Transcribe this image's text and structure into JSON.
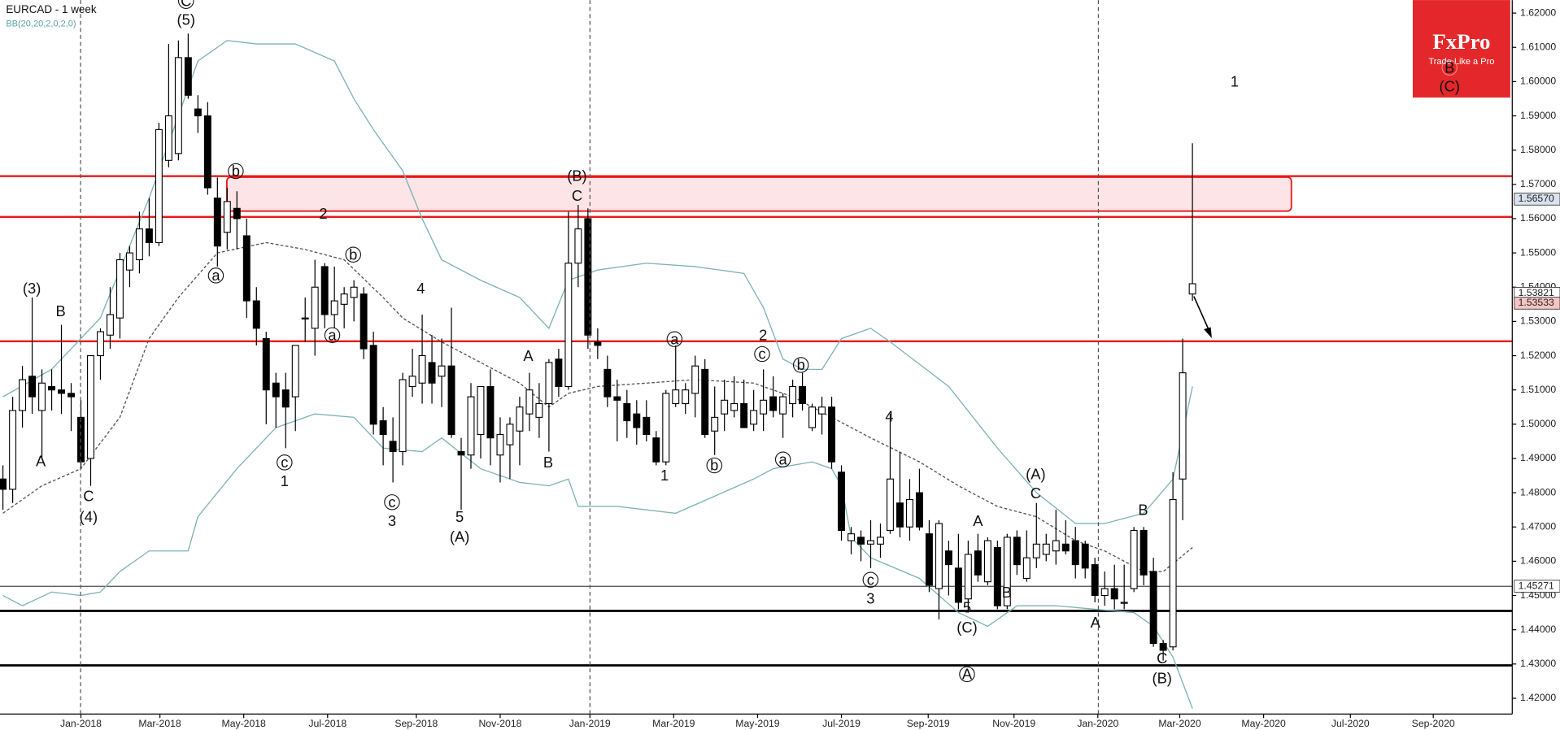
{
  "chart_data": {
    "type": "candlestick",
    "title": "EURCAD - 1 week",
    "indicator": "BB(20,20,2,0,2,0)",
    "logo": {
      "name": "FxPro",
      "slogan": "Trade Like a Pro"
    },
    "ylim": [
      1.4154,
      1.6238
    ],
    "xlim": [
      -0.3,
      154.8
    ],
    "yticks": [
      {
        "value": 1.62,
        "label": "1.62000"
      },
      {
        "value": 1.61,
        "label": "1.61000"
      },
      {
        "value": 1.6,
        "label": "1.60000"
      },
      {
        "value": 1.59,
        "label": "1.59000"
      },
      {
        "value": 1.58,
        "label": "1.58000"
      },
      {
        "value": 1.57,
        "label": "1.57000"
      },
      {
        "value": 1.56,
        "label": "1.56000"
      },
      {
        "value": 1.55,
        "label": "1.55000"
      },
      {
        "value": 1.54,
        "label": "1.54000"
      },
      {
        "value": 1.53,
        "label": "1.53000"
      },
      {
        "value": 1.52,
        "label": "1.52000"
      },
      {
        "value": 1.51,
        "label": "1.51000"
      },
      {
        "value": 1.5,
        "label": "1.50000"
      },
      {
        "value": 1.49,
        "label": "1.49000"
      },
      {
        "value": 1.48,
        "label": "1.48000"
      },
      {
        "value": 1.47,
        "label": "1.47000"
      },
      {
        "value": 1.46,
        "label": "1.46000"
      },
      {
        "value": 1.45,
        "label": "1.45000"
      },
      {
        "value": 1.44,
        "label": "1.44000"
      },
      {
        "value": 1.43,
        "label": "1.43000"
      },
      {
        "value": 1.42,
        "label": "1.42000"
      }
    ],
    "xticks": [
      {
        "value": 8.0,
        "label": "Jan-2018"
      },
      {
        "value": 16.1,
        "label": "Mar-2018"
      },
      {
        "value": 24.7,
        "label": "May-2018"
      },
      {
        "value": 33.3,
        "label": "Jul-2018"
      },
      {
        "value": 42.4,
        "label": "Sep-2018"
      },
      {
        "value": 51.0,
        "label": "Nov-2018"
      },
      {
        "value": 60.2,
        "label": "Jan-2019"
      },
      {
        "value": 68.8,
        "label": "Mar-2019"
      },
      {
        "value": 77.4,
        "label": "May-2019"
      },
      {
        "value": 86.0,
        "label": "Jul-2019"
      },
      {
        "value": 94.9,
        "label": "Sep-2019"
      },
      {
        "value": 103.7,
        "label": "Nov-2019"
      },
      {
        "value": 112.3,
        "label": "Jan-2020"
      },
      {
        "value": 120.7,
        "label": "Mar-2020"
      },
      {
        "value": 129.3,
        "label": "May-2020"
      },
      {
        "value": 138.2,
        "label": "Jul-2020"
      },
      {
        "value": 146.7,
        "label": "Sep-2020"
      }
    ],
    "ohlc": [
      [
        1.484,
        1.488,
        1.475,
        1.481
      ],
      [
        1.481,
        1.508,
        1.477,
        1.504
      ],
      [
        1.504,
        1.517,
        1.499,
        1.513
      ],
      [
        1.514,
        1.537,
        1.503,
        1.508
      ],
      [
        1.504,
        1.516,
        1.49,
        1.512
      ],
      [
        1.511,
        1.516,
        1.504,
        1.51
      ],
      [
        1.51,
        1.529,
        1.503,
        1.509
      ],
      [
        1.509,
        1.512,
        1.498,
        1.508
      ],
      [
        1.502,
        1.507,
        1.487,
        1.489
      ],
      [
        1.49,
        1.52,
        1.482,
        1.52
      ],
      [
        1.52,
        1.528,
        1.513,
        1.527
      ],
      [
        1.526,
        1.54,
        1.522,
        1.532
      ],
      [
        1.531,
        1.55,
        1.525,
        1.548
      ],
      [
        1.545,
        1.552,
        1.54,
        1.55
      ],
      [
        1.548,
        1.562,
        1.544,
        1.557
      ],
      [
        1.557,
        1.566,
        1.549,
        1.553
      ],
      [
        1.553,
        1.588,
        1.552,
        1.586
      ],
      [
        1.577,
        1.611,
        1.575,
        1.59
      ],
      [
        1.579,
        1.612,
        1.577,
        1.607
      ],
      [
        1.607,
        1.614,
        1.595,
        1.596
      ],
      [
        1.592,
        1.596,
        1.585,
        1.59
      ],
      [
        1.59,
        1.594,
        1.567,
        1.569
      ],
      [
        1.566,
        1.572,
        1.546,
        1.552
      ],
      [
        1.556,
        1.569,
        1.551,
        1.565
      ],
      [
        1.563,
        1.568,
        1.551,
        1.56
      ],
      [
        1.555,
        1.56,
        1.531,
        1.536
      ],
      [
        1.536,
        1.54,
        1.523,
        1.528
      ],
      [
        1.525,
        1.527,
        1.5,
        1.51
      ],
      [
        1.512,
        1.515,
        1.499,
        1.508
      ],
      [
        1.51,
        1.515,
        1.493,
        1.505
      ],
      [
        1.508,
        1.523,
        1.498,
        1.523
      ],
      [
        1.531,
        1.537,
        1.524,
        1.531
      ],
      [
        1.528,
        1.548,
        1.52,
        1.54
      ],
      [
        1.546,
        1.547,
        1.528,
        1.532
      ],
      [
        1.532,
        1.546,
        1.528,
        1.536
      ],
      [
        1.535,
        1.54,
        1.528,
        1.538
      ],
      [
        1.537,
        1.542,
        1.53,
        1.54
      ],
      [
        1.538,
        1.54,
        1.519,
        1.522
      ],
      [
        1.523,
        1.527,
        1.497,
        1.5
      ],
      [
        1.501,
        1.505,
        1.488,
        1.497
      ],
      [
        1.495,
        1.502,
        1.483,
        1.492
      ],
      [
        1.492,
        1.515,
        1.488,
        1.513
      ],
      [
        1.511,
        1.522,
        1.508,
        1.514
      ],
      [
        1.512,
        1.532,
        1.506,
        1.52
      ],
      [
        1.518,
        1.526,
        1.506,
        1.512
      ],
      [
        1.514,
        1.525,
        1.505,
        1.517
      ],
      [
        1.517,
        1.534,
        1.496,
        1.497
      ],
      [
        1.492,
        1.496,
        1.475,
        1.491
      ],
      [
        1.491,
        1.512,
        1.487,
        1.508
      ],
      [
        1.497,
        1.51,
        1.49,
        1.511
      ],
      [
        1.511,
        1.516,
        1.488,
        1.496
      ],
      [
        1.491,
        1.502,
        1.483,
        1.497
      ],
      [
        1.494,
        1.502,
        1.484,
        1.5
      ],
      [
        1.498,
        1.508,
        1.488,
        1.505
      ],
      [
        1.503,
        1.515,
        1.498,
        1.51
      ],
      [
        1.502,
        1.512,
        1.496,
        1.506
      ],
      [
        1.506,
        1.519,
        1.492,
        1.518
      ],
      [
        1.519,
        1.522,
        1.508,
        1.511
      ],
      [
        1.511,
        1.562,
        1.51,
        1.547
      ],
      [
        1.547,
        1.564,
        1.54,
        1.557
      ],
      [
        1.56,
        1.563,
        1.522,
        1.526
      ],
      [
        1.524,
        1.528,
        1.519,
        1.523
      ],
      [
        1.516,
        1.52,
        1.505,
        1.508
      ],
      [
        1.508,
        1.513,
        1.495,
        1.507
      ],
      [
        1.506,
        1.51,
        1.496,
        1.501
      ],
      [
        1.503,
        1.507,
        1.494,
        1.499
      ],
      [
        1.502,
        1.507,
        1.495,
        1.497
      ],
      [
        1.496,
        1.498,
        1.488,
        1.489
      ],
      [
        1.489,
        1.51,
        1.488,
        1.509
      ],
      [
        1.506,
        1.523,
        1.505,
        1.51
      ],
      [
        1.506,
        1.512,
        1.503,
        1.51
      ],
      [
        1.509,
        1.52,
        1.502,
        1.517
      ],
      [
        1.516,
        1.519,
        1.496,
        1.497
      ],
      [
        1.498,
        1.511,
        1.491,
        1.502
      ],
      [
        1.503,
        1.513,
        1.498,
        1.507
      ],
      [
        1.504,
        1.514,
        1.502,
        1.506
      ],
      [
        1.506,
        1.513,
        1.499,
        1.499
      ],
      [
        1.5,
        1.51,
        1.498,
        1.504
      ],
      [
        1.503,
        1.516,
        1.498,
        1.507
      ],
      [
        1.508,
        1.514,
        1.502,
        1.504
      ],
      [
        1.503,
        1.509,
        1.496,
        1.508
      ],
      [
        1.506,
        1.513,
        1.502,
        1.511
      ],
      [
        1.511,
        1.515,
        1.504,
        1.506
      ],
      [
        1.499,
        1.506,
        1.498,
        1.505
      ],
      [
        1.503,
        1.508,
        1.497,
        1.505
      ],
      [
        1.505,
        1.508,
        1.487,
        1.489
      ],
      [
        1.486,
        1.488,
        1.466,
        1.469
      ],
      [
        1.466,
        1.47,
        1.462,
        1.468
      ],
      [
        1.467,
        1.469,
        1.46,
        1.465
      ],
      [
        1.465,
        1.472,
        1.458,
        1.466
      ],
      [
        1.465,
        1.471,
        1.461,
        1.467
      ],
      [
        1.469,
        1.503,
        1.468,
        1.484
      ],
      [
        1.477,
        1.492,
        1.467,
        1.47
      ],
      [
        1.47,
        1.484,
        1.466,
        1.478
      ],
      [
        1.48,
        1.487,
        1.469,
        1.47
      ],
      [
        1.468,
        1.472,
        1.451,
        1.453
      ],
      [
        1.452,
        1.472,
        1.443,
        1.471
      ],
      [
        1.463,
        1.466,
        1.45,
        1.459
      ],
      [
        1.458,
        1.468,
        1.446,
        1.448
      ],
      [
        1.449,
        1.466,
        1.445,
        1.462
      ],
      [
        1.463,
        1.468,
        1.454,
        1.456
      ],
      [
        1.454,
        1.467,
        1.453,
        1.466
      ],
      [
        1.464,
        1.466,
        1.446,
        1.447
      ],
      [
        1.447,
        1.468,
        1.446,
        1.467
      ],
      [
        1.467,
        1.469,
        1.456,
        1.459
      ],
      [
        1.455,
        1.469,
        1.454,
        1.461
      ],
      [
        1.461,
        1.477,
        1.458,
        1.465
      ],
      [
        1.462,
        1.468,
        1.46,
        1.465
      ],
      [
        1.463,
        1.475,
        1.459,
        1.466
      ],
      [
        1.465,
        1.472,
        1.462,
        1.463
      ],
      [
        1.466,
        1.47,
        1.455,
        1.459
      ],
      [
        1.465,
        1.466,
        1.455,
        1.458
      ],
      [
        1.459,
        1.461,
        1.448,
        1.45
      ],
      [
        1.45,
        1.457,
        1.447,
        1.452
      ],
      [
        1.452,
        1.459,
        1.446,
        1.449
      ],
      [
        1.448,
        1.459,
        1.446,
        1.448
      ],
      [
        1.452,
        1.47,
        1.451,
        1.469
      ],
      [
        1.469,
        1.47,
        1.453,
        1.456
      ],
      [
        1.457,
        1.461,
        1.435,
        1.436
      ],
      [
        1.436,
        1.437,
        1.431,
        1.434
      ],
      [
        1.435,
        1.486,
        1.434,
        1.478
      ],
      [
        1.484,
        1.525,
        1.472,
        1.515
      ],
      [
        1.538,
        1.582,
        1.536,
        1.541
      ]
    ],
    "bands": [
      {
        "color": "#7fb3b5",
        "dash": false,
        "x": [
          0,
          5,
          10,
          15,
          20,
          23,
          26,
          30,
          34,
          36,
          38,
          41,
          43,
          45,
          49,
          53,
          56,
          58,
          61,
          66,
          71,
          76,
          78,
          80,
          82,
          84,
          86,
          89,
          91,
          97,
          102,
          106,
          110,
          113,
          117,
          120,
          122
        ],
        "values": [
          1.508,
          1.516,
          1.531,
          1.566,
          1.606,
          1.612,
          1.611,
          1.611,
          1.606,
          1.595,
          1.586,
          1.574,
          1.56,
          1.548,
          1.542,
          1.537,
          1.528,
          1.542,
          1.545,
          1.547,
          1.546,
          1.544,
          1.534,
          1.519,
          1.516,
          1.516,
          1.525,
          1.528,
          1.524,
          1.511,
          1.493,
          1.48,
          1.471,
          1.471,
          1.474,
          1.484,
          1.511
        ]
      },
      {
        "color": "#555555",
        "dash": true,
        "x": [
          0,
          4,
          8,
          12,
          15,
          18,
          22,
          27,
          31,
          35,
          39,
          41,
          45,
          49,
          53,
          56,
          58,
          61,
          66,
          71,
          77,
          81,
          85,
          89,
          94,
          98,
          102,
          106,
          110,
          113,
          117,
          119,
          122
        ],
        "values": [
          1.474,
          1.482,
          1.487,
          1.502,
          1.525,
          1.537,
          1.55,
          1.553,
          1.551,
          1.548,
          1.537,
          1.531,
          1.524,
          1.518,
          1.512,
          1.505,
          1.509,
          1.511,
          1.512,
          1.513,
          1.512,
          1.508,
          1.502,
          1.496,
          1.489,
          1.482,
          1.476,
          1.473,
          1.466,
          1.463,
          1.457,
          1.457,
          1.464
        ]
      },
      {
        "color": "#7fb3b5",
        "dash": false,
        "x": [
          0,
          2,
          5,
          8,
          10,
          12,
          15,
          19,
          20,
          24,
          27,
          28,
          32,
          36,
          39,
          43,
          45,
          49,
          53,
          56,
          58,
          59,
          63,
          69,
          73,
          77,
          79,
          83,
          85,
          86,
          87,
          89,
          94,
          98,
          101,
          104,
          108,
          112,
          116,
          118,
          120,
          122
        ],
        "values": [
          1.45,
          1.447,
          1.451,
          1.45,
          1.451,
          1.457,
          1.463,
          1.463,
          1.473,
          1.487,
          1.496,
          1.499,
          1.503,
          1.502,
          1.493,
          1.492,
          1.496,
          1.487,
          1.483,
          1.482,
          1.484,
          1.476,
          1.476,
          1.474,
          1.479,
          1.484,
          1.487,
          1.489,
          1.487,
          1.482,
          1.467,
          1.461,
          1.455,
          1.445,
          1.441,
          1.447,
          1.447,
          1.446,
          1.445,
          1.441,
          1.432,
          1.417
        ]
      }
    ],
    "zone": [
      1.5622,
      1.5721
    ],
    "levels": [
      {
        "value": 1.5724,
        "color": "#e8191b",
        "width": 2
      },
      {
        "value": 1.5605,
        "color": "#e8191b",
        "width": 2
      },
      {
        "value": 1.5242,
        "color": "#e8191b",
        "width": 2
      },
      {
        "value": 1.4527,
        "color": "#000000",
        "width": 0.7
      },
      {
        "value": 1.4455,
        "color": "#000000",
        "width": 2.2
      },
      {
        "value": 1.4296,
        "color": "#000000",
        "width": 2.2
      }
    ],
    "price_labels": [
      {
        "value": 1.5657,
        "label": "1.56570",
        "color": "#d9e2ee"
      },
      {
        "value": 1.53821,
        "label": "1.53821",
        "color": "#ffffff"
      },
      {
        "value": 1.53533,
        "label": "1.53533",
        "color": "#f6c4c4"
      },
      {
        "value": 1.45271,
        "label": "1.45271",
        "color": "#ffffff"
      }
    ],
    "annotations": [
      "(3)",
      "B",
      "A",
      "C",
      "(4)",
      "C",
      "(5)",
      "b",
      "a",
      "2",
      "b",
      "a",
      "c",
      "1",
      "4",
      "c",
      "3",
      "5",
      "(A)",
      "A",
      "B",
      "(B)",
      "C",
      "a",
      "1",
      "b",
      "2",
      "c",
      "b",
      "a",
      "4",
      "c",
      "3",
      "A",
      "B",
      "5",
      "(C)",
      "A",
      "(A)",
      "C",
      "A",
      "B",
      "C",
      "(B)",
      "1",
      "B",
      "(C)"
    ]
  }
}
